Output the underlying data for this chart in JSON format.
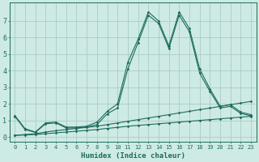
{
  "xlabel": "Humidex (Indice chaleur)",
  "background_color": "#ceeae4",
  "grid_color": "#aaccc6",
  "line_color": "#1d6b5e",
  "xlim": [
    -0.5,
    23.5
  ],
  "ylim": [
    -0.3,
    8.1
  ],
  "xticks": [
    0,
    1,
    2,
    3,
    4,
    5,
    6,
    7,
    8,
    9,
    10,
    11,
    12,
    13,
    14,
    15,
    16,
    17,
    18,
    19,
    20,
    21,
    22,
    23
  ],
  "yticks": [
    0,
    1,
    2,
    3,
    4,
    5,
    6,
    7
  ],
  "series": [
    {
      "x": [
        0,
        1,
        2,
        3,
        4,
        5,
        6,
        7,
        8,
        9,
        10,
        11,
        12,
        13,
        14,
        15,
        16,
        17,
        18,
        19,
        20,
        21,
        22,
        23
      ],
      "y": [
        1.3,
        0.5,
        0.3,
        0.85,
        0.9,
        0.6,
        0.6,
        0.65,
        0.9,
        1.55,
        2.0,
        4.5,
        5.9,
        7.55,
        7.0,
        5.5,
        7.55,
        6.55,
        4.1,
        2.9,
        1.85,
        1.95,
        1.5,
        1.35
      ]
    },
    {
      "x": [
        0,
        1,
        2,
        3,
        4,
        5,
        6,
        7,
        8,
        9,
        10,
        11,
        12,
        13,
        14,
        15,
        16,
        17,
        18,
        19,
        20,
        21,
        22,
        23
      ],
      "y": [
        1.25,
        0.45,
        0.28,
        0.8,
        0.85,
        0.55,
        0.55,
        0.6,
        0.75,
        1.4,
        1.75,
        4.1,
        5.7,
        7.35,
        6.85,
        5.35,
        7.35,
        6.35,
        3.85,
        2.75,
        1.75,
        1.85,
        1.42,
        1.28
      ]
    },
    {
      "x": [
        0,
        1,
        2,
        3,
        4,
        5,
        6,
        7,
        8,
        9,
        10,
        11,
        12,
        13,
        14,
        15,
        16,
        17,
        18,
        19,
        20,
        21,
        22,
        23
      ],
      "y": [
        0.1,
        0.15,
        0.2,
        0.3,
        0.38,
        0.45,
        0.52,
        0.58,
        0.65,
        0.75,
        0.85,
        0.95,
        1.05,
        1.15,
        1.25,
        1.35,
        1.45,
        1.55,
        1.65,
        1.75,
        1.85,
        1.95,
        2.05,
        2.15
      ]
    },
    {
      "x": [
        0,
        1,
        2,
        3,
        4,
        5,
        6,
        7,
        8,
        9,
        10,
        11,
        12,
        13,
        14,
        15,
        16,
        17,
        18,
        19,
        20,
        21,
        22,
        23
      ],
      "y": [
        0.1,
        0.12,
        0.15,
        0.2,
        0.25,
        0.3,
        0.35,
        0.4,
        0.45,
        0.52,
        0.58,
        0.65,
        0.7,
        0.75,
        0.8,
        0.85,
        0.9,
        0.95,
        1.0,
        1.05,
        1.1,
        1.15,
        1.2,
        1.25
      ]
    }
  ]
}
